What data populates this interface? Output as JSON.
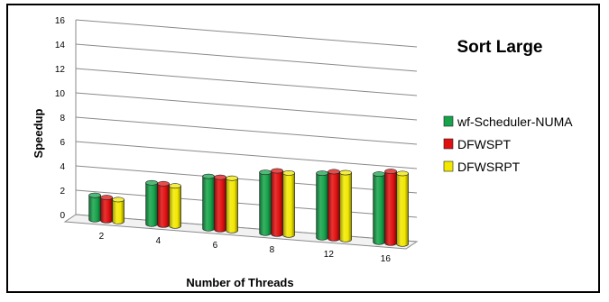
{
  "chart_data": {
    "type": "bar",
    "title": "Sort Large",
    "xlabel": "Number of Threads",
    "ylabel": "Speedup",
    "ylim": [
      0,
      16
    ],
    "yticks": [
      "0",
      "2",
      "4",
      "6",
      "8",
      "10",
      "12",
      "14",
      "16"
    ],
    "categories": [
      "2",
      "4",
      "6",
      "8",
      "12",
      "16"
    ],
    "series": [
      {
        "name": "wf-Scheduler-NUMA",
        "color": "#16a34a",
        "values": [
          2.0,
          3.4,
          4.3,
          5.0,
          5.3,
          5.6
        ]
      },
      {
        "name": "DFWSPT",
        "color": "#e11010",
        "values": [
          1.9,
          3.4,
          4.3,
          5.2,
          5.5,
          5.9
        ]
      },
      {
        "name": "DFWSRPT",
        "color": "#f2e800",
        "values": [
          1.8,
          3.3,
          4.3,
          5.1,
          5.5,
          5.8
        ]
      }
    ],
    "legend_position": "right",
    "grid": true
  }
}
